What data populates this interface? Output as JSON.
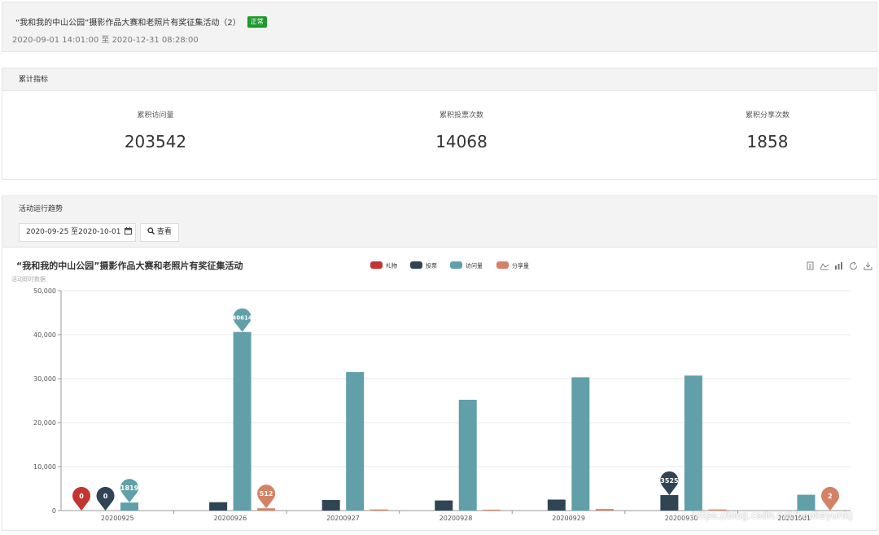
{
  "activity": {
    "title": "“我和我的中山公园”摄影作品大赛和老照片有奖征集活动（2）",
    "status": "正常",
    "time_range": "2020-09-01 14:01:00 至 2020-12-31 08:28:00"
  },
  "metrics": {
    "header": "累计指标",
    "items": [
      {
        "label": "累积访问量",
        "value": "203542"
      },
      {
        "label": "累积投票次数",
        "value": "14068"
      },
      {
        "label": "累积分享次数",
        "value": "1858"
      }
    ]
  },
  "trend": {
    "header": "活动运行趋势",
    "date_range": "2020-09-25 至2020-10-01",
    "calendar_icon": "calendar-icon",
    "view_label": "查看",
    "search_icon": "search-icon"
  },
  "toolbox": [
    "data-view-icon",
    "line-chart-icon",
    "bar-chart-icon",
    "refresh-icon",
    "download-icon"
  ],
  "watermark": "https://blog.csdn.net/baokeyunkj",
  "chart_data": {
    "type": "bar",
    "title": "“我和我的中山公园”摄影作品大赛和老照片有奖征集活动",
    "subtitle": "活动即时数据",
    "categories": [
      "20200925",
      "20200926",
      "20200927",
      "20200928",
      "20200929",
      "20200930",
      "20201001"
    ],
    "ylim": [
      0,
      50000
    ],
    "yticks": [
      "0",
      "10,000",
      "20,000",
      "30,000",
      "40,000",
      "50,000"
    ],
    "legend_position": "top-center",
    "grid": true,
    "series": [
      {
        "name": "礼物",
        "color": "#c23531",
        "values": [
          0,
          0,
          0,
          0,
          0,
          0,
          0
        ]
      },
      {
        "name": "投票",
        "color": "#2f4554",
        "values": [
          0,
          1900,
          2400,
          2300,
          2500,
          3525,
          0
        ]
      },
      {
        "name": "访问量",
        "color": "#61a0a8",
        "values": [
          1819,
          40614,
          31500,
          25200,
          30300,
          30700,
          3600
        ]
      },
      {
        "name": "分享量",
        "color": "#d48265",
        "values": [
          0,
          512,
          250,
          200,
          350,
          250,
          2
        ]
      }
    ],
    "markers": [
      {
        "series": 0,
        "category": 0,
        "label": "0"
      },
      {
        "series": 1,
        "category": 0,
        "label": "0"
      },
      {
        "series": 2,
        "category": 0,
        "label": "1819"
      },
      {
        "series": 2,
        "category": 1,
        "label": "40614"
      },
      {
        "series": 3,
        "category": 1,
        "label": "512"
      },
      {
        "series": 1,
        "category": 5,
        "label": "3525"
      },
      {
        "series": 3,
        "category": 6,
        "label": "2"
      }
    ]
  }
}
